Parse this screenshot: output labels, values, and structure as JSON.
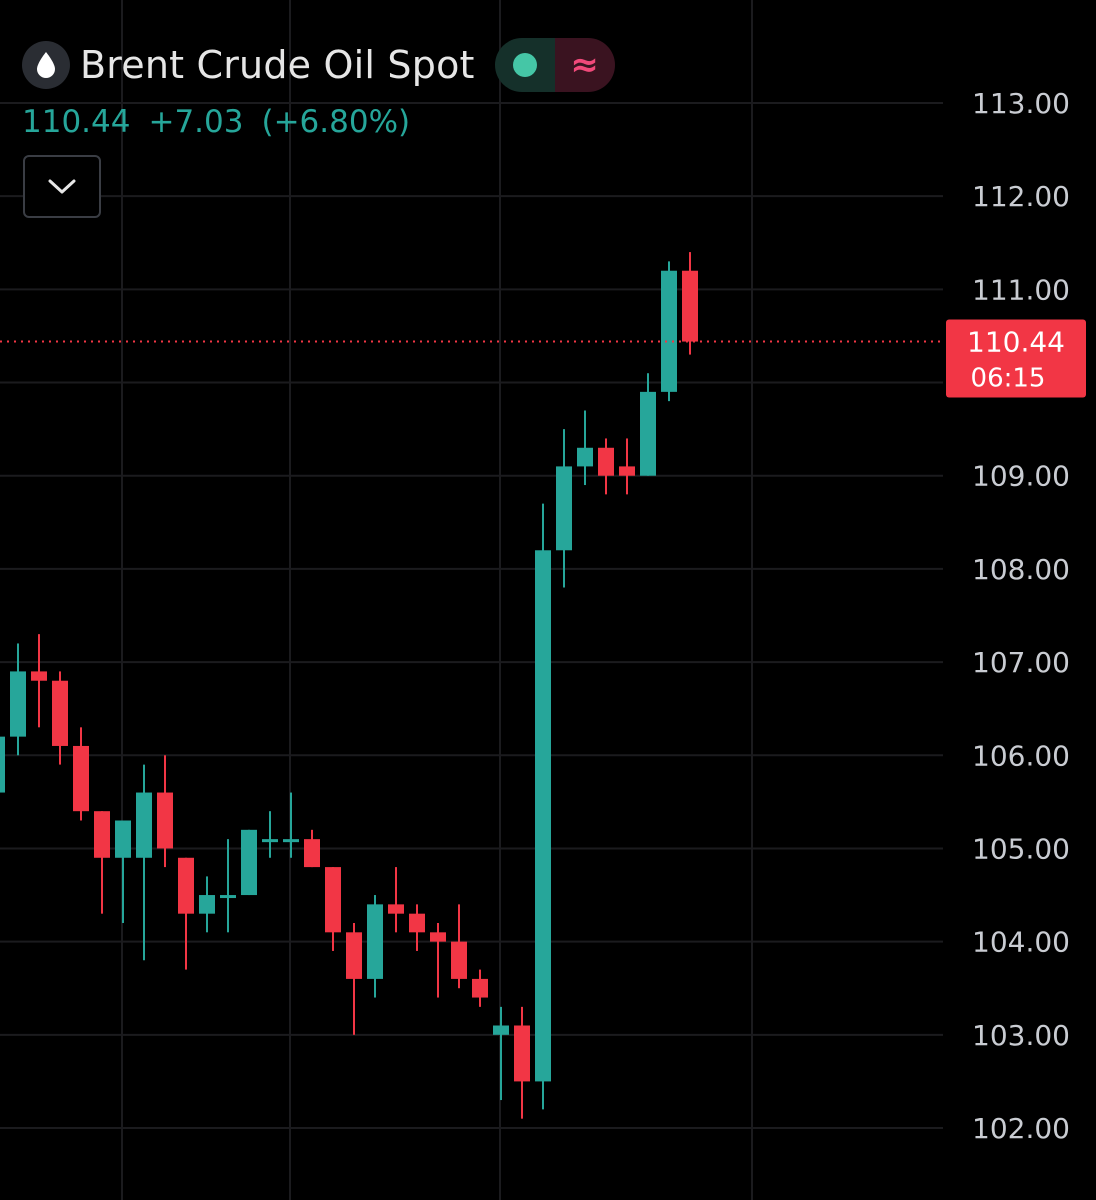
{
  "header": {
    "title": "Brent Crude Oil Spot",
    "symbol_icon": "drop-icon",
    "status_icons": [
      "market-open-dot-icon",
      "wave-icon"
    ],
    "status_wave_glyph": "≈"
  },
  "quote": {
    "last": "110.44",
    "change": "+7.03",
    "change_pct": "(+6.80%)"
  },
  "price_badge": {
    "price": "110.44",
    "countdown": "06:15"
  },
  "colors": {
    "up": "#26a69a",
    "down": "#f23645",
    "background": "#000000",
    "grid": "#1b1b1e",
    "axis_text": "#c9ccd2"
  },
  "chart_data": {
    "type": "candlestick",
    "title": "Brent Crude Oil Spot",
    "ylim": [
      101.3,
      113.9
    ],
    "y_ticks": [
      "113.00",
      "112.00",
      "111.00",
      "110.00",
      "109.00",
      "108.00",
      "107.00",
      "106.00",
      "105.00",
      "104.00",
      "103.00",
      "102.00"
    ],
    "current_price": 110.44,
    "grid": true,
    "candles": [
      {
        "o": 105.6,
        "h": 106.5,
        "l": 105.5,
        "c": 106.2
      },
      {
        "o": 106.2,
        "h": 107.2,
        "l": 106.0,
        "c": 106.9
      },
      {
        "o": 106.9,
        "h": 107.3,
        "l": 106.3,
        "c": 106.8
      },
      {
        "o": 106.8,
        "h": 106.9,
        "l": 105.9,
        "c": 106.1
      },
      {
        "o": 106.1,
        "h": 106.3,
        "l": 105.3,
        "c": 105.4
      },
      {
        "o": 105.4,
        "h": 105.4,
        "l": 104.3,
        "c": 104.9
      },
      {
        "o": 104.9,
        "h": 105.3,
        "l": 104.2,
        "c": 105.3
      },
      {
        "o": 104.9,
        "h": 105.9,
        "l": 103.8,
        "c": 105.6
      },
      {
        "o": 105.6,
        "h": 106.0,
        "l": 104.8,
        "c": 105.0
      },
      {
        "o": 104.9,
        "h": 104.9,
        "l": 103.7,
        "c": 104.3
      },
      {
        "o": 104.3,
        "h": 104.7,
        "l": 104.1,
        "c": 104.5
      },
      {
        "o": 104.5,
        "h": 105.1,
        "l": 104.1,
        "c": 104.5
      },
      {
        "o": 104.5,
        "h": 105.2,
        "l": 104.5,
        "c": 105.2
      },
      {
        "o": 105.1,
        "h": 105.4,
        "l": 104.9,
        "c": 105.1
      },
      {
        "o": 105.1,
        "h": 105.6,
        "l": 104.9,
        "c": 105.1
      },
      {
        "o": 105.1,
        "h": 105.2,
        "l": 104.8,
        "c": 104.8
      },
      {
        "o": 104.8,
        "h": 104.8,
        "l": 103.9,
        "c": 104.1
      },
      {
        "o": 104.1,
        "h": 104.2,
        "l": 103.0,
        "c": 103.6
      },
      {
        "o": 103.6,
        "h": 104.5,
        "l": 103.4,
        "c": 104.4
      },
      {
        "o": 104.4,
        "h": 104.8,
        "l": 104.1,
        "c": 104.3
      },
      {
        "o": 104.3,
        "h": 104.4,
        "l": 103.9,
        "c": 104.1
      },
      {
        "o": 104.1,
        "h": 104.2,
        "l": 103.4,
        "c": 104.0
      },
      {
        "o": 104.0,
        "h": 104.4,
        "l": 103.5,
        "c": 103.6
      },
      {
        "o": 103.6,
        "h": 103.7,
        "l": 103.3,
        "c": 103.4
      },
      {
        "o": 103.0,
        "h": 103.3,
        "l": 102.3,
        "c": 103.1
      },
      {
        "o": 103.1,
        "h": 103.3,
        "l": 102.1,
        "c": 102.5
      },
      {
        "o": 102.5,
        "h": 108.7,
        "l": 102.2,
        "c": 108.2
      },
      {
        "o": 108.2,
        "h": 109.5,
        "l": 107.8,
        "c": 109.1
      },
      {
        "o": 109.1,
        "h": 109.7,
        "l": 108.9,
        "c": 109.3
      },
      {
        "o": 109.3,
        "h": 109.4,
        "l": 108.8,
        "c": 109.0
      },
      {
        "o": 109.1,
        "h": 109.4,
        "l": 108.8,
        "c": 109.0
      },
      {
        "o": 109.0,
        "h": 110.1,
        "l": 109.0,
        "c": 109.9
      },
      {
        "o": 109.9,
        "h": 111.3,
        "l": 109.8,
        "c": 111.2
      },
      {
        "o": 111.2,
        "h": 111.4,
        "l": 110.3,
        "c": 110.44
      }
    ]
  }
}
